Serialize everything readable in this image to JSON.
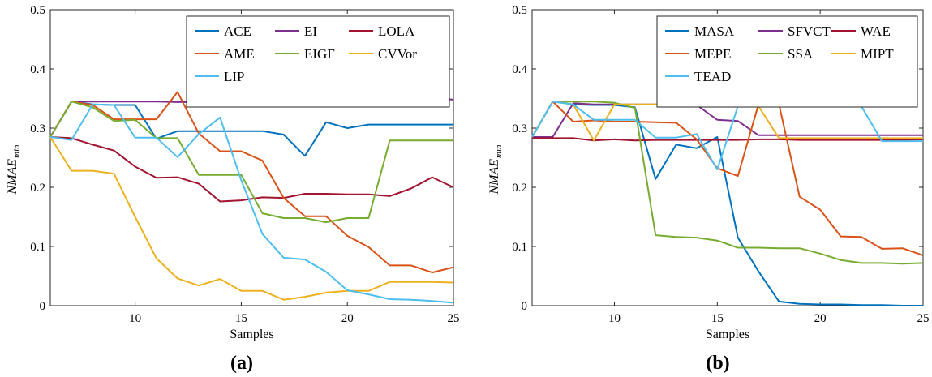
{
  "chart_data": [
    {
      "type": "line",
      "panel_label": "(a)",
      "xlabel": "Samples",
      "ylabel_main": "NMAE",
      "ylabel_sub": "min",
      "xlim": [
        6,
        25
      ],
      "ylim": [
        0,
        0.5
      ],
      "xticks": [
        10,
        15,
        20,
        25
      ],
      "yticks": [
        0,
        0.1,
        0.2,
        0.3,
        0.4,
        0.5
      ],
      "ytick_labels": [
        "0",
        "0.1",
        "0.2",
        "0.3",
        "0.4",
        "0.5"
      ],
      "grid": false,
      "legend_position": "top-right",
      "legend_columns": 3,
      "x": [
        6,
        7,
        8,
        9,
        10,
        11,
        12,
        13,
        14,
        15,
        16,
        17,
        18,
        19,
        20,
        21,
        22,
        23,
        24,
        25
      ],
      "series": [
        {
          "name": "ACE",
          "color": "#0072BD",
          "values": [
            0.285,
            0.345,
            0.34,
            0.339,
            0.339,
            0.282,
            0.295,
            0.295,
            0.295,
            0.295,
            0.295,
            0.289,
            0.253,
            0.31,
            0.3,
            0.306,
            0.306,
            0.306,
            0.306,
            0.306
          ]
        },
        {
          "name": "EI",
          "color": "#7E2F8E",
          "values": [
            0.285,
            0.345,
            0.345,
            0.345,
            0.345,
            0.345,
            0.344,
            0.344,
            0.344,
            0.344,
            0.344,
            0.344,
            0.344,
            0.344,
            0.344,
            0.343,
            0.344,
            0.348,
            0.352,
            0.348
          ]
        },
        {
          "name": "LOLA",
          "color": "#A2142F",
          "values": [
            0.285,
            0.283,
            0.272,
            0.262,
            0.235,
            0.216,
            0.217,
            0.206,
            0.176,
            0.178,
            0.183,
            0.182,
            0.189,
            0.189,
            0.188,
            0.188,
            0.185,
            0.198,
            0.217,
            0.2
          ]
        },
        {
          "name": "AME",
          "color": "#D95319",
          "values": [
            0.285,
            0.345,
            0.339,
            0.315,
            0.315,
            0.315,
            0.361,
            0.291,
            0.261,
            0.261,
            0.245,
            0.182,
            0.151,
            0.151,
            0.118,
            0.099,
            0.068,
            0.068,
            0.056,
            0.065
          ]
        },
        {
          "name": "EIGF",
          "color": "#77AC30",
          "values": [
            0.285,
            0.345,
            0.335,
            0.312,
            0.314,
            0.283,
            0.283,
            0.221,
            0.221,
            0.221,
            0.156,
            0.148,
            0.148,
            0.141,
            0.148,
            0.148,
            0.279,
            0.279,
            0.279,
            0.279
          ]
        },
        {
          "name": "CVVor",
          "color": "#EDB120",
          "values": [
            0.285,
            0.228,
            0.228,
            0.223,
            0.15,
            0.08,
            0.046,
            0.034,
            0.045,
            0.025,
            0.025,
            0.01,
            0.015,
            0.022,
            0.025,
            0.025,
            0.04,
            0.04,
            0.04,
            0.039
          ]
        },
        {
          "name": "LIP",
          "color": "#4DBEEE",
          "values": [
            0.285,
            0.28,
            0.34,
            0.339,
            0.284,
            0.284,
            0.251,
            0.29,
            0.318,
            0.212,
            0.121,
            0.081,
            0.078,
            0.057,
            0.026,
            0.019,
            0.011,
            0.01,
            0.008,
            0.005
          ]
        }
      ]
    },
    {
      "type": "line",
      "panel_label": "(b)",
      "xlabel": "Samples",
      "ylabel_main": "NMAE",
      "ylabel_sub": "min",
      "xlim": [
        6,
        25
      ],
      "ylim": [
        0,
        0.5
      ],
      "xticks": [
        10,
        15,
        20,
        25
      ],
      "yticks": [
        0,
        0.1,
        0.2,
        0.3,
        0.4,
        0.5
      ],
      "ytick_labels": [
        "0",
        "0.1",
        "0.2",
        "0.3",
        "0.4",
        "0.5"
      ],
      "grid": false,
      "legend_position": "top-right",
      "legend_columns": 3,
      "x": [
        6,
        7,
        8,
        9,
        10,
        11,
        12,
        13,
        14,
        15,
        16,
        17,
        18,
        19,
        20,
        21,
        22,
        23,
        24,
        25
      ],
      "series": [
        {
          "name": "MASA",
          "color": "#0072BD",
          "values": [
            0.285,
            0.345,
            0.34,
            0.339,
            0.339,
            0.335,
            0.214,
            0.272,
            0.266,
            0.285,
            0.115,
            0.058,
            0.007,
            0.003,
            0.002,
            0.002,
            0.001,
            0.001,
            0.0,
            0.0
          ]
        },
        {
          "name": "SFVCT",
          "color": "#7E2F8E",
          "values": [
            0.285,
            0.285,
            0.342,
            0.34,
            0.34,
            0.34,
            0.34,
            0.34,
            0.339,
            0.314,
            0.312,
            0.288,
            0.288,
            0.288,
            0.288,
            0.288,
            0.288,
            0.288,
            0.288,
            0.288
          ]
        },
        {
          "name": "WAE",
          "color": "#A2142F",
          "values": [
            0.283,
            0.283,
            0.283,
            0.279,
            0.281,
            0.279,
            0.28,
            0.28,
            0.28,
            0.28,
            0.28,
            0.281,
            0.281,
            0.28,
            0.28,
            0.28,
            0.28,
            0.28,
            0.28,
            0.281
          ]
        },
        {
          "name": "MEPE",
          "color": "#D95319",
          "values": [
            0.285,
            0.345,
            0.311,
            0.313,
            0.311,
            0.311,
            0.31,
            0.309,
            0.281,
            0.232,
            0.219,
            0.34,
            0.34,
            0.184,
            0.162,
            0.117,
            0.116,
            0.096,
            0.097,
            0.085
          ]
        },
        {
          "name": "SSA",
          "color": "#77AC30",
          "values": [
            0.285,
            0.345,
            0.345,
            0.345,
            0.343,
            0.334,
            0.119,
            0.116,
            0.115,
            0.11,
            0.098,
            0.098,
            0.097,
            0.097,
            0.088,
            0.077,
            0.072,
            0.072,
            0.071,
            0.072
          ]
        },
        {
          "name": "MIPT",
          "color": "#EDB120",
          "values": [
            0.285,
            0.345,
            0.34,
            0.279,
            0.34,
            0.34,
            0.34,
            0.34,
            0.34,
            0.34,
            0.337,
            0.337,
            0.283,
            0.283,
            0.283,
            0.283,
            0.283,
            0.283,
            0.283,
            0.283
          ]
        },
        {
          "name": "TEAD",
          "color": "#4DBEEE",
          "values": [
            0.285,
            0.345,
            0.34,
            0.314,
            0.314,
            0.314,
            0.284,
            0.284,
            0.29,
            0.23,
            0.337,
            0.337,
            0.337,
            0.337,
            0.337,
            0.337,
            0.337,
            0.278,
            0.278,
            0.278
          ]
        }
      ]
    }
  ]
}
